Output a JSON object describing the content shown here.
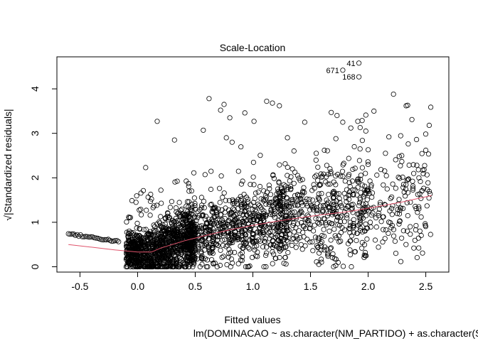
{
  "chart_data": {
    "type": "scatter",
    "title": "Scale-Location",
    "xlabel": "Fitted values",
    "ylabel": "√|Standardized residuals|",
    "subtitle": "lm(DOMINACAO ~ as.character(NM_PARTIDO) + as.character(SG_UF) + NR_IDADE_DA ...",
    "xlim": [
      -0.7,
      2.7
    ],
    "ylim": [
      -0.12,
      4.72
    ],
    "x_ticks": [
      -0.5,
      0.0,
      0.5,
      1.0,
      1.5,
      2.0,
      2.5
    ],
    "x_tick_labels": [
      "-0.5",
      "0.0",
      "0.5",
      "1.0",
      "1.5",
      "2.0",
      "2.5"
    ],
    "y_ticks": [
      0,
      1,
      2,
      3,
      4
    ],
    "y_tick_labels": [
      "0",
      "1",
      "2",
      "3",
      "4"
    ],
    "grid": false,
    "smoother_color": "#DF536B",
    "point_color": "#000000",
    "labeled_points": [
      {
        "label": "41",
        "x": 1.92,
        "y": 4.58
      },
      {
        "label": "671",
        "x": 1.78,
        "y": 4.42
      },
      {
        "label": "168",
        "x": 1.92,
        "y": 4.27
      }
    ],
    "outliers": [
      [
        0.62,
        3.78
      ],
      [
        0.75,
        3.65
      ],
      [
        0.72,
        3.52
      ],
      [
        1.12,
        3.72
      ],
      [
        1.17,
        3.68
      ],
      [
        1.23,
        3.62
      ],
      [
        2.22,
        3.88
      ],
      [
        2.33,
        3.62
      ],
      [
        0.17,
        3.27
      ],
      [
        0.8,
        3.35
      ],
      [
        0.93,
        3.46
      ],
      [
        1.01,
        3.27
      ],
      [
        1.45,
        3.25
      ],
      [
        1.68,
        3.47
      ],
      [
        1.73,
        3.4
      ],
      [
        1.91,
        3.27
      ],
      [
        1.98,
        3.41
      ],
      [
        2.05,
        3.5
      ],
      [
        2.38,
        3.31
      ],
      [
        2.53,
        3.18
      ],
      [
        0.32,
        2.85
      ],
      [
        0.57,
        3.07
      ],
      [
        0.77,
        2.9
      ],
      [
        0.82,
        2.8
      ],
      [
        1.3,
        2.9
      ],
      [
        1.72,
        2.88
      ],
      [
        1.78,
        3.25
      ],
      [
        1.85,
        3.12
      ],
      [
        1.98,
        3.05
      ],
      [
        2.18,
        2.92
      ],
      [
        2.42,
        2.86
      ],
      [
        2.0,
        2.63
      ],
      [
        2.27,
        2.48
      ],
      [
        0.07,
        2.23
      ],
      [
        2.15,
        2.55
      ],
      [
        1.88,
        2.7
      ],
      [
        1.55,
        2.55
      ],
      [
        1.62,
        2.62
      ],
      [
        2.5,
        2.62
      ],
      [
        1.93,
        2.65
      ]
    ],
    "smoother": {
      "x": [
        -0.6,
        -0.4,
        -0.2,
        0.0,
        0.12,
        0.2,
        0.4,
        0.6,
        0.8,
        1.0,
        1.2,
        1.4,
        1.6,
        1.8,
        1.92,
        2.1,
        2.3,
        2.55
      ],
      "y": [
        0.5,
        0.44,
        0.38,
        0.33,
        0.33,
        0.42,
        0.58,
        0.71,
        0.83,
        0.93,
        1.02,
        1.1,
        1.17,
        1.23,
        1.28,
        1.36,
        1.46,
        1.6
      ]
    }
  }
}
